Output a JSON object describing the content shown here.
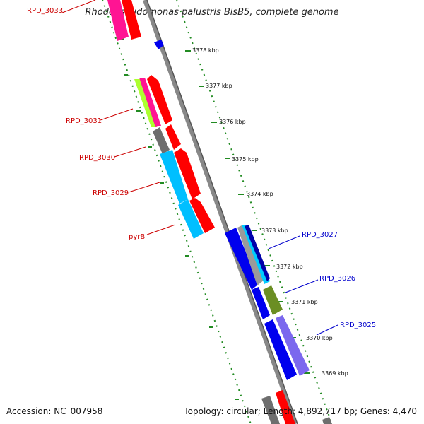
{
  "title": "Rhodopseudomonas palustris BisB5, complete genome",
  "accession_label": "Accession: NC_007958",
  "summary_label": "Topology: circular; Length: 4,892,717 bp; Genes: 4,470",
  "colors": {
    "forward_gene": "#ff0000",
    "reverse_gene": "#0000ee",
    "backbone": "#888888",
    "tick": "#228b22",
    "label_forward": "#cc0000",
    "label_reverse": "#0000cc"
  },
  "scale_labels": [
    "3378 kbp",
    "3377 kbp",
    "3376 kbp",
    "3375 kbp",
    "3374 kbp",
    "3373 kbp",
    "3372 kbp",
    "3371 kbp",
    "3370 kbp",
    "3369 kbp"
  ],
  "gene_labels_forward": [
    "RPD_3033",
    "RPD_3031",
    "RPD_3030",
    "RPD_3029",
    "pyrB"
  ],
  "gene_labels_reverse": [
    "RPD_3027",
    "RPD_3026",
    "RPD_3025"
  ]
}
